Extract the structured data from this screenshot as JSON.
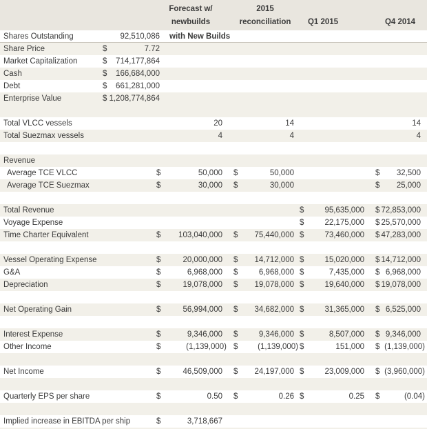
{
  "title": "Tanker fleet financial comparison table",
  "colors": {
    "header_bg": "#e9e6df",
    "stripe_bg": "#f2f0e9",
    "text": "#3b3b3b",
    "rule": "#c9c5bc"
  },
  "header": {
    "col1": [
      "Forecast w/",
      "newbuilds"
    ],
    "col2": [
      "2015",
      "reconciliation"
    ],
    "col3": "Q1 2015",
    "col4": "Q4 2014"
  },
  "rows": [
    {
      "label": "Shares Outstanding",
      "note": "with New Builds",
      "top": {
        "v": "92,510,086"
      },
      "bg": "white",
      "rule": true
    },
    {
      "label": "Share Price",
      "top": {
        "d": "$",
        "v": "7.72"
      },
      "bg": "stripe"
    },
    {
      "label": "Market Capitalization",
      "top": {
        "d": "$",
        "v": "714,177,864"
      },
      "bg": "white"
    },
    {
      "label": "Cash",
      "top": {
        "d": "$",
        "v": "166,684,000"
      },
      "bg": "stripe"
    },
    {
      "label": "Debt",
      "top": {
        "d": "$",
        "v": "661,281,000"
      },
      "bg": "white"
    },
    {
      "label": "Enterprise Value",
      "top": {
        "d": "$",
        "v": "1,208,774,864"
      },
      "bg": "stripe"
    },
    {
      "blank": true,
      "bg": "stripe"
    },
    {
      "label": "Total VLCC vessels",
      "c1": {
        "v": "20"
      },
      "c2": {
        "v": "14"
      },
      "c4": {
        "v": "14"
      },
      "bg": "white"
    },
    {
      "label": "Total Suezmax vessels",
      "c1": {
        "v": "4"
      },
      "c2": {
        "v": "4"
      },
      "c4": {
        "v": "4"
      },
      "bg": "stripe"
    },
    {
      "blank": true,
      "bg": "white"
    },
    {
      "label": "Revenue",
      "bg": "stripe"
    },
    {
      "label": "Average TCE VLCC",
      "indent": true,
      "c1": {
        "d": "$",
        "v": "50,000"
      },
      "c2": {
        "d": "$",
        "v": "50,000"
      },
      "c4": {
        "d": "$",
        "v": "32,500"
      },
      "bg": "white"
    },
    {
      "label": "Average TCE Suezmax",
      "indent": true,
      "c1": {
        "d": "$",
        "v": "30,000"
      },
      "c2": {
        "d": "$",
        "v": "30,000"
      },
      "c4": {
        "d": "$",
        "v": "25,000"
      },
      "bg": "stripe"
    },
    {
      "blank": true,
      "bg": "white"
    },
    {
      "label": "Total Revenue",
      "c3": {
        "d": "$",
        "v": "95,635,000"
      },
      "c4": {
        "d": "$",
        "v": "72,853,000"
      },
      "bg": "stripe"
    },
    {
      "label": "Voyage Expense",
      "c3": {
        "d": "$",
        "v": "22,175,000"
      },
      "c4": {
        "d": "$",
        "v": "25,570,000"
      },
      "bg": "white"
    },
    {
      "label": "Time Charter Equivalent",
      "c1": {
        "d": "$",
        "v": "103,040,000"
      },
      "c2": {
        "d": "$",
        "v": "75,440,000"
      },
      "c3": {
        "d": "$",
        "v": "73,460,000"
      },
      "c4": {
        "d": "$",
        "v": "47,283,000"
      },
      "bg": "stripe"
    },
    {
      "blank": true,
      "bg": "white"
    },
    {
      "label": "Vessel Operating Expense",
      "c1": {
        "d": "$",
        "v": "20,000,000"
      },
      "c2": {
        "d": "$",
        "v": "14,712,000"
      },
      "c3": {
        "d": "$",
        "v": "15,020,000"
      },
      "c4": {
        "d": "$",
        "v": "14,712,000"
      },
      "bg": "stripe"
    },
    {
      "label": "G&A",
      "c1": {
        "d": "$",
        "v": "6,968,000"
      },
      "c2": {
        "d": "$",
        "v": "6,968,000"
      },
      "c3": {
        "d": "$",
        "v": "7,435,000"
      },
      "c4": {
        "d": "$",
        "v": "6,968,000"
      },
      "bg": "white"
    },
    {
      "label": "Depreciation",
      "c1": {
        "d": "$",
        "v": "19,078,000"
      },
      "c2": {
        "d": "$",
        "v": "19,078,000"
      },
      "c3": {
        "d": "$",
        "v": "19,640,000"
      },
      "c4": {
        "d": "$",
        "v": "19,078,000"
      },
      "bg": "stripe"
    },
    {
      "blank": true,
      "bg": "white"
    },
    {
      "label": "Net Operating Gain",
      "c1": {
        "d": "$",
        "v": "56,994,000"
      },
      "c2": {
        "d": "$",
        "v": "34,682,000"
      },
      "c3": {
        "d": "$",
        "v": "31,365,000"
      },
      "c4": {
        "d": "$",
        "v": "6,525,000"
      },
      "bg": "stripe"
    },
    {
      "blank": true,
      "bg": "white"
    },
    {
      "label": "Interest Expense",
      "c1": {
        "d": "$",
        "v": "9,346,000"
      },
      "c2": {
        "d": "$",
        "v": "9,346,000"
      },
      "c3": {
        "d": "$",
        "v": "8,507,000"
      },
      "c4": {
        "d": "$",
        "v": "9,346,000"
      },
      "bg": "stripe"
    },
    {
      "label": "Other Income",
      "c1": {
        "d": "$",
        "v": "(1,139,000)",
        "neg": true
      },
      "c2": {
        "d": "$",
        "v": "(1,139,000)",
        "neg": true
      },
      "c3": {
        "d": "$",
        "v": "151,000"
      },
      "c4": {
        "d": "$",
        "v": "(1,139,000)",
        "neg": true
      },
      "bg": "white"
    },
    {
      "blank": true,
      "bg": "stripe"
    },
    {
      "label": "Net Income",
      "c1": {
        "d": "$",
        "v": "46,509,000"
      },
      "c2": {
        "d": "$",
        "v": "24,197,000"
      },
      "c3": {
        "d": "$",
        "v": "23,009,000"
      },
      "c4": {
        "d": "$",
        "v": "(3,960,000)",
        "neg": true
      },
      "bg": "white"
    },
    {
      "blank": true,
      "bg": "stripe"
    },
    {
      "label": "Quarterly EPS per share",
      "c1": {
        "d": "$",
        "v": "0.50"
      },
      "c2": {
        "d": "$",
        "v": "0.26"
      },
      "c3": {
        "d": "$",
        "v": "0.25"
      },
      "c4": {
        "d": "$",
        "v": "(0.04)",
        "neg": true
      },
      "bg": "white"
    },
    {
      "blank": true,
      "bg": "stripe"
    },
    {
      "label": "Implied increase in EBITDA per ship",
      "c1": {
        "d": "$",
        "v": "3,718,667"
      },
      "bg": "white"
    }
  ]
}
